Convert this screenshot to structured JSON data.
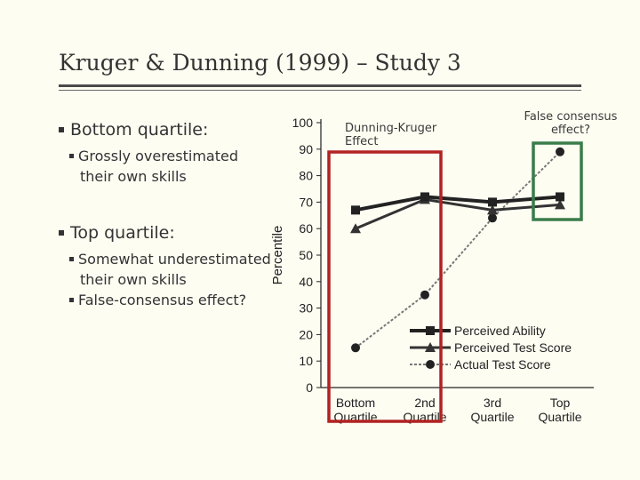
{
  "slide": {
    "title": "Kruger & Dunning (1999) – Study 3",
    "bullets": [
      {
        "text": "Bottom quartile:",
        "sub": [
          "Grossly overestimated their own skills"
        ]
      },
      {
        "text": "Top quartile:",
        "sub": [
          "Somewhat underestimated their own skills",
          "False-consensus effect?"
        ]
      }
    ],
    "annotations": {
      "dunning_kruger": "Dunning-Kruger Effect",
      "false_consensus": "False consensus effect?"
    },
    "colors": {
      "red_box": "#b22222",
      "green_box": "#3a7d4a",
      "background": "#fdfdf2"
    }
  },
  "chart_data": {
    "type": "line",
    "categories": [
      "Bottom Quartile",
      "2nd Quartile",
      "3rd Quartile",
      "Top Quartile"
    ],
    "category_lines": [
      [
        "Bottom",
        "Quartile"
      ],
      [
        "2nd",
        "Quartile"
      ],
      [
        "3rd",
        "Quartile"
      ],
      [
        "Top",
        "Quartile"
      ]
    ],
    "series": [
      {
        "name": "Perceived Ability",
        "values": [
          67,
          72,
          70,
          72
        ],
        "marker": "square",
        "style": "solid"
      },
      {
        "name": "Perceived Test Score",
        "values": [
          60,
          71,
          67,
          69
        ],
        "marker": "triangle",
        "style": "solid"
      },
      {
        "name": "Actual Test Score",
        "values": [
          15,
          35,
          64,
          89
        ],
        "marker": "circle",
        "style": "dashed"
      }
    ],
    "ylabel": "Percentile",
    "ylim": [
      0,
      100
    ],
    "yticks": [
      0,
      10,
      20,
      30,
      40,
      50,
      60,
      70,
      80,
      90,
      100
    ],
    "grid": false,
    "legend": "bottom-right"
  }
}
